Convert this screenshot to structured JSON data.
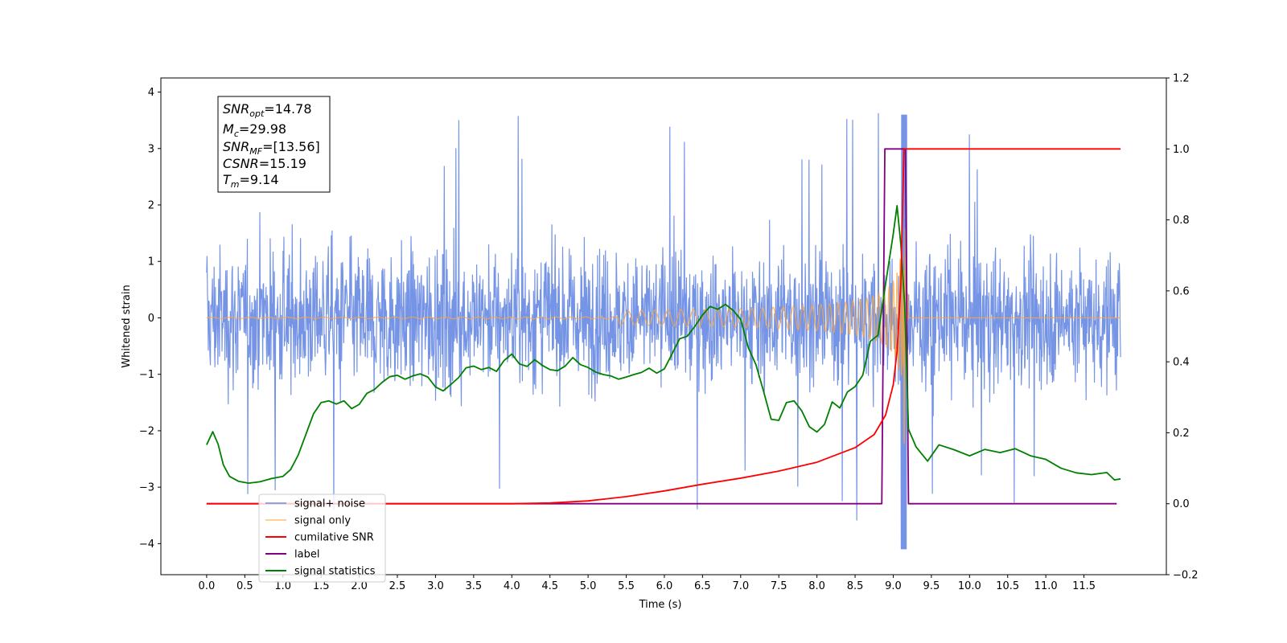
{
  "chart_data": {
    "type": "line",
    "xlabel": "Time (s)",
    "ylabel_left": "Whitened strain",
    "x_ticks": [
      "0.0",
      "0.5",
      "1.0",
      "1.5",
      "2.0",
      "2.5",
      "3.0",
      "3.5",
      "4.0",
      "4.5",
      "5.0",
      "5.5",
      "6.0",
      "6.5",
      "7.0",
      "7.5",
      "8.0",
      "8.5",
      "9.0",
      "9.5",
      "10.0",
      "10.5",
      "11.0",
      "11.5"
    ],
    "left_axis": {
      "ylim": [
        -4.55,
        4.25
      ],
      "ticks": [
        "4",
        "3",
        "2",
        "1",
        "0",
        "−1",
        "−2",
        "−3",
        "−4"
      ]
    },
    "right_axis": {
      "ylim": [
        -0.2,
        1.2
      ],
      "ticks": [
        "1.2",
        "1.0",
        "0.8",
        "0.6",
        "0.4",
        "0.2",
        "0.0",
        "−0.2"
      ]
    },
    "xlim": [
      -0.6,
      12.58
    ],
    "grid": false,
    "legend_position": "lower-left",
    "info_box": {
      "snr_opt": {
        "sym": "SNR",
        "sub": "opt",
        "val": "=14.78"
      },
      "mc": {
        "sym": "M",
        "sub": "c",
        "val": "=29.98"
      },
      "snr_mf": {
        "sym": "SNR",
        "sub": "MF",
        "val": "=[13.56]"
      },
      "csnr": {
        "sym": "CSNR",
        "sub": "",
        "val": "=15.19"
      },
      "tm": {
        "sym": "T",
        "sub": "m",
        "val": "=9.14"
      }
    },
    "series": [
      {
        "name": "signal+ noise",
        "color": "#6f8ee5",
        "axis": "left",
        "description_values": {
          "x_range": [
            0.0,
            11.98
          ],
          "approx_band": [
            -2.3,
            2.3
          ],
          "peak_max": 3.85,
          "peak_min": -4.1
        }
      },
      {
        "name": "signal only",
        "color": "#ffa533",
        "axis": "left",
        "chirp": {
          "t_merger": 9.14,
          "start_visible": 5.4,
          "peak_amplitude": 1.1,
          "flat_after": 9.2
        }
      },
      {
        "name": "cumilative SNR",
        "color": "#ff0000",
        "axis": "right",
        "points": [
          [
            0.0,
            0.0
          ],
          [
            4.0,
            0.0
          ],
          [
            4.5,
            0.002
          ],
          [
            5.0,
            0.008
          ],
          [
            5.5,
            0.02
          ],
          [
            6.0,
            0.036
          ],
          [
            6.5,
            0.055
          ],
          [
            7.0,
            0.072
          ],
          [
            7.5,
            0.092
          ],
          [
            8.0,
            0.117
          ],
          [
            8.5,
            0.158
          ],
          [
            8.75,
            0.195
          ],
          [
            8.9,
            0.25
          ],
          [
            9.0,
            0.335
          ],
          [
            9.05,
            0.43
          ],
          [
            9.1,
            0.62
          ],
          [
            9.14,
            1.0
          ],
          [
            11.98,
            1.0
          ]
        ]
      },
      {
        "name": "label",
        "color": "#800080",
        "axis": "right",
        "points": [
          [
            0.0,
            0.0
          ],
          [
            8.85,
            0.0
          ],
          [
            8.89,
            1.0
          ],
          [
            9.16,
            1.0
          ],
          [
            9.2,
            0.0
          ],
          [
            11.93,
            0.0
          ]
        ]
      },
      {
        "name": "signal statistics",
        "color": "#008000",
        "axis": "right",
        "points": [
          [
            0.0,
            0.166
          ],
          [
            0.08,
            0.203
          ],
          [
            0.15,
            0.168
          ],
          [
            0.22,
            0.109
          ],
          [
            0.3,
            0.077
          ],
          [
            0.42,
            0.063
          ],
          [
            0.55,
            0.058
          ],
          [
            0.7,
            0.062
          ],
          [
            0.85,
            0.071
          ],
          [
            1.0,
            0.077
          ],
          [
            1.1,
            0.096
          ],
          [
            1.2,
            0.137
          ],
          [
            1.3,
            0.195
          ],
          [
            1.4,
            0.253
          ],
          [
            1.5,
            0.285
          ],
          [
            1.6,
            0.29
          ],
          [
            1.7,
            0.281
          ],
          [
            1.8,
            0.29
          ],
          [
            1.9,
            0.268
          ],
          [
            2.0,
            0.28
          ],
          [
            2.1,
            0.311
          ],
          [
            2.2,
            0.322
          ],
          [
            2.3,
            0.342
          ],
          [
            2.4,
            0.358
          ],
          [
            2.5,
            0.362
          ],
          [
            2.6,
            0.351
          ],
          [
            2.7,
            0.36
          ],
          [
            2.8,
            0.366
          ],
          [
            2.9,
            0.357
          ],
          [
            3.0,
            0.329
          ],
          [
            3.1,
            0.318
          ],
          [
            3.2,
            0.336
          ],
          [
            3.3,
            0.355
          ],
          [
            3.4,
            0.383
          ],
          [
            3.5,
            0.388
          ],
          [
            3.6,
            0.378
          ],
          [
            3.7,
            0.384
          ],
          [
            3.8,
            0.373
          ],
          [
            3.9,
            0.404
          ],
          [
            4.0,
            0.422
          ],
          [
            4.1,
            0.394
          ],
          [
            4.2,
            0.387
          ],
          [
            4.3,
            0.406
          ],
          [
            4.4,
            0.39
          ],
          [
            4.5,
            0.378
          ],
          [
            4.6,
            0.375
          ],
          [
            4.7,
            0.388
          ],
          [
            4.8,
            0.412
          ],
          [
            4.9,
            0.392
          ],
          [
            5.0,
            0.384
          ],
          [
            5.1,
            0.371
          ],
          [
            5.2,
            0.364
          ],
          [
            5.3,
            0.36
          ],
          [
            5.4,
            0.351
          ],
          [
            5.5,
            0.357
          ],
          [
            5.6,
            0.364
          ],
          [
            5.7,
            0.37
          ],
          [
            5.8,
            0.382
          ],
          [
            5.9,
            0.368
          ],
          [
            6.0,
            0.38
          ],
          [
            6.1,
            0.422
          ],
          [
            6.2,
            0.465
          ],
          [
            6.3,
            0.472
          ],
          [
            6.4,
            0.5
          ],
          [
            6.5,
            0.532
          ],
          [
            6.6,
            0.556
          ],
          [
            6.7,
            0.548
          ],
          [
            6.8,
            0.562
          ],
          [
            6.9,
            0.545
          ],
          [
            7.0,
            0.52
          ],
          [
            7.1,
            0.44
          ],
          [
            7.2,
            0.392
          ],
          [
            7.3,
            0.317
          ],
          [
            7.4,
            0.238
          ],
          [
            7.5,
            0.235
          ],
          [
            7.6,
            0.285
          ],
          [
            7.7,
            0.29
          ],
          [
            7.8,
            0.262
          ],
          [
            7.9,
            0.217
          ],
          [
            8.0,
            0.202
          ],
          [
            8.1,
            0.224
          ],
          [
            8.2,
            0.287
          ],
          [
            8.3,
            0.27
          ],
          [
            8.4,
            0.315
          ],
          [
            8.5,
            0.33
          ],
          [
            8.6,
            0.362
          ],
          [
            8.7,
            0.458
          ],
          [
            8.8,
            0.475
          ],
          [
            8.9,
            0.62
          ],
          [
            9.0,
            0.76
          ],
          [
            9.05,
            0.84
          ],
          [
            9.1,
            0.73
          ],
          [
            9.15,
            0.56
          ],
          [
            9.2,
            0.21
          ],
          [
            9.3,
            0.16
          ],
          [
            9.45,
            0.12
          ],
          [
            9.6,
            0.166
          ],
          [
            9.8,
            0.152
          ],
          [
            10.0,
            0.135
          ],
          [
            10.2,
            0.153
          ],
          [
            10.4,
            0.144
          ],
          [
            10.6,
            0.155
          ],
          [
            10.8,
            0.135
          ],
          [
            11.0,
            0.125
          ],
          [
            11.2,
            0.1
          ],
          [
            11.4,
            0.087
          ],
          [
            11.6,
            0.082
          ],
          [
            11.8,
            0.088
          ],
          [
            11.9,
            0.067
          ],
          [
            11.98,
            0.07
          ]
        ]
      }
    ]
  }
}
